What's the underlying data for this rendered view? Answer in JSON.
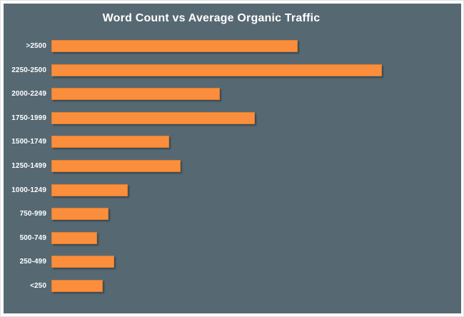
{
  "colors": {
    "background": "#566972",
    "bar_fill": "#FB8E3C",
    "bar_border": "#DD7E2B",
    "bar_shadow": "rgba(25,33,39,0.45)",
    "text": "#FFFFFF",
    "frame": "#FFFFFF",
    "frame_border": "#E0E0E0"
  },
  "chart_data": {
    "type": "bar",
    "orientation": "horizontal",
    "title": "Word Count vs Average Organic Traffic",
    "xlabel": "",
    "ylabel": "",
    "categories": [
      ">2500",
      "2250-2500",
      "2000-2249",
      "1750-1999",
      "1500-1749",
      "1250-1499",
      "1000-1249",
      "750-999",
      "500-749",
      "250-499",
      "<250"
    ],
    "values_relative_pct": [
      74.5,
      100,
      51.0,
      61.6,
      35.6,
      39.1,
      23.1,
      17.3,
      13.8,
      19.0,
      15.6
    ],
    "value_axis_visible": false,
    "grid": false,
    "legend": false,
    "note": "No numeric axis or data labels are shown in the image; values are bar lengths expressed as percent of the longest bar (2250-2500)."
  }
}
